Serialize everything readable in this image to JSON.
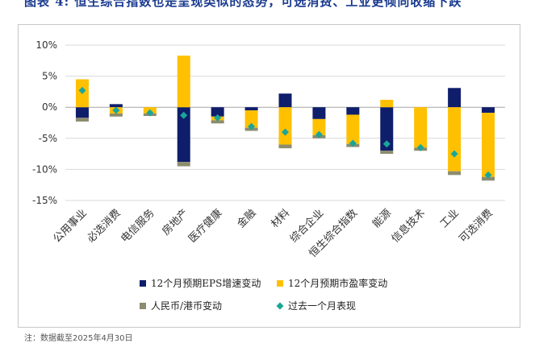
{
  "header": {
    "title": "图表 4: 恒生综合指数也是呈现类似的态势，可选消费、工业更倾向收缩下跌"
  },
  "footer": {
    "source": "注：数据截至2025年4月30日"
  },
  "colors": {
    "eps": "#0f1e6b",
    "pe": "#ffc000",
    "fx": "#8c8c6e",
    "perf": "#1aa59a",
    "grid": "#d9d9d9",
    "zero": "#a6a6a6"
  },
  "chart_data": {
    "type": "bar",
    "stacked": true,
    "categories": [
      "公用事业",
      "必选消费",
      "电信服务",
      "房地产",
      "医疗健康",
      "金融",
      "材料",
      "综合企业",
      "恒生综合指数",
      "能源",
      "信息技术",
      "工业",
      "可选消费"
    ],
    "ylim": [
      -15,
      10
    ],
    "yticks": [
      -15,
      -10,
      -5,
      0,
      5,
      10
    ],
    "ytick_labels": [
      "-15%",
      "-10%",
      "-5%",
      "0%",
      "5%",
      "10%"
    ],
    "grid": true,
    "legend_position": "bottom",
    "series": [
      {
        "name": "12个月预期EPS增速变动",
        "kind": "bar",
        "values": [
          -1.7,
          0.5,
          0.0,
          -8.8,
          -1.5,
          -0.5,
          2.2,
          -1.9,
          -1.2,
          -7.0,
          0.0,
          3.1,
          -0.9
        ]
      },
      {
        "name": "12个月预期市盈率变动",
        "kind": "bar",
        "values": [
          4.5,
          -1.0,
          -1.0,
          8.3,
          -0.6,
          -2.8,
          -6.0,
          -2.6,
          -4.7,
          1.2,
          -6.5,
          -10.3,
          -10.3
        ]
      },
      {
        "name": "人民币/港币变动",
        "kind": "bar",
        "values": [
          -0.6,
          -0.5,
          -0.4,
          -0.7,
          -0.5,
          -0.5,
          -0.6,
          -0.5,
          -0.5,
          -0.5,
          -0.5,
          -0.6,
          -0.6
        ]
      },
      {
        "name": "过去一个月表现",
        "kind": "marker",
        "values": [
          2.7,
          -0.5,
          -0.9,
          -1.3,
          -1.7,
          -3.1,
          -4.0,
          -4.4,
          -5.8,
          -5.9,
          -6.5,
          -7.5,
          -10.9
        ]
      }
    ]
  }
}
